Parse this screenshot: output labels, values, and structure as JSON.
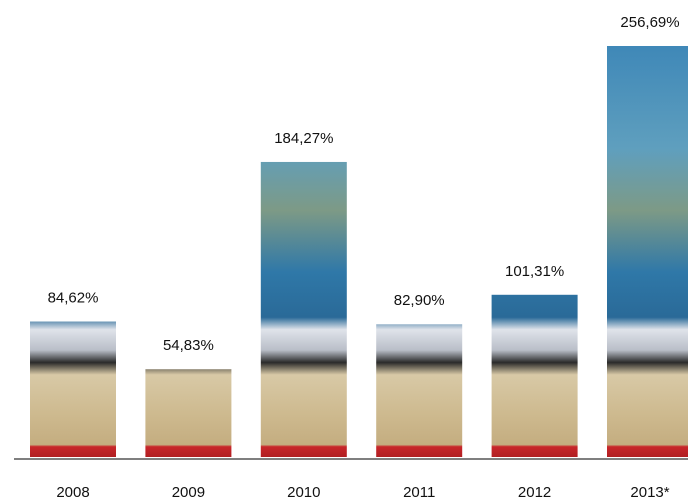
{
  "chart_data": {
    "type": "bar",
    "categories": [
      "2008",
      "2009",
      "2010",
      "2011",
      "2012",
      "2013*"
    ],
    "values": [
      84.62,
      54.83,
      184.27,
      82.9,
      101.31,
      256.69
    ],
    "value_labels": [
      "84,62%",
      "54,83%",
      "184,27%",
      "82,90%",
      "101,31%",
      "256,69%"
    ]
  }
}
